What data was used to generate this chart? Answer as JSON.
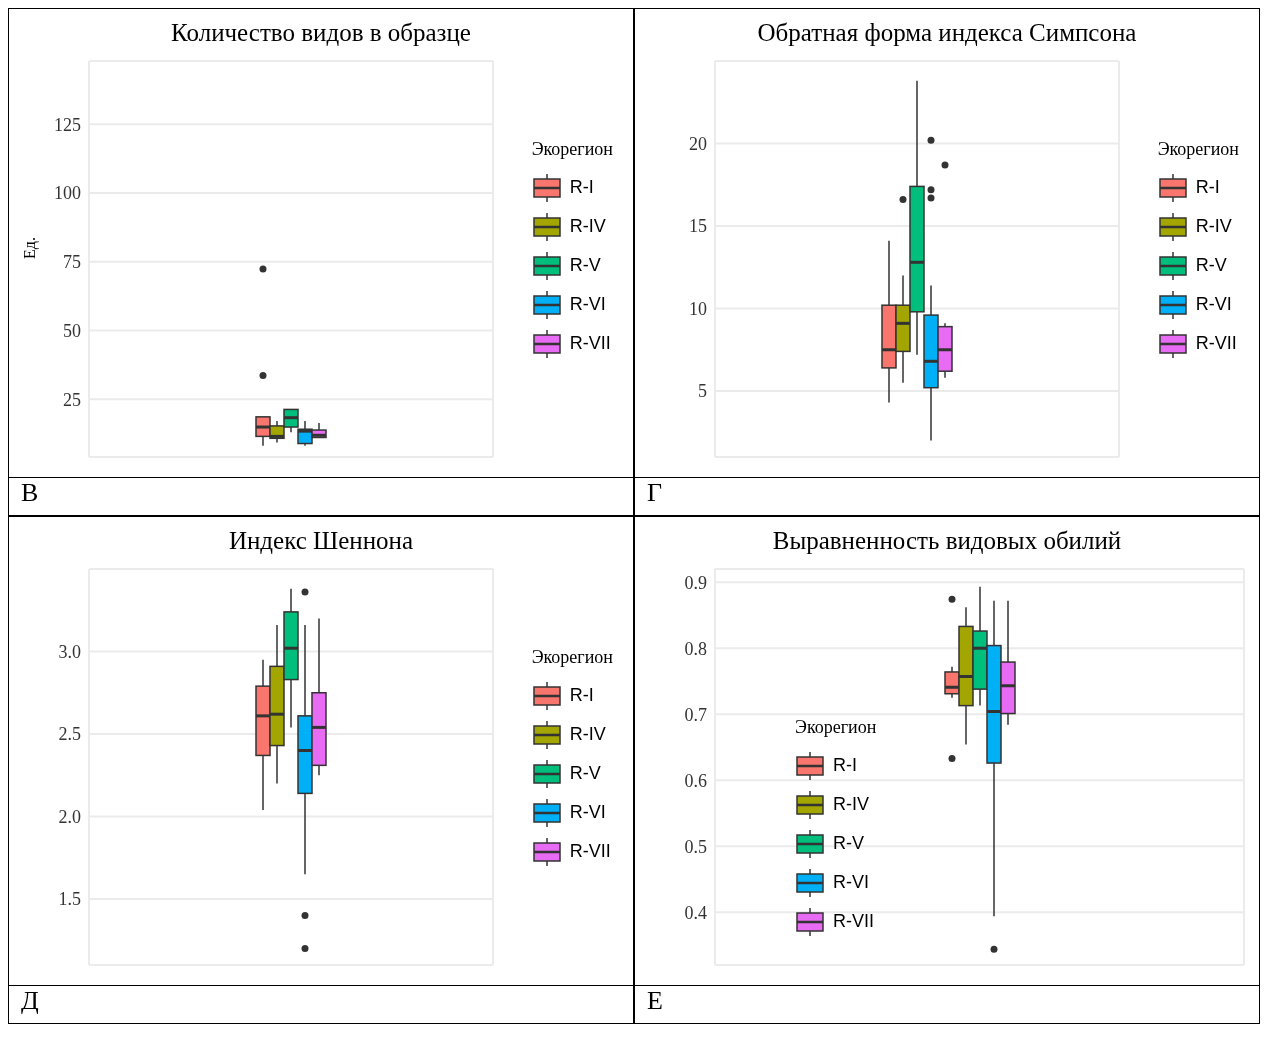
{
  "chart_data": [
    {
      "type": "box",
      "title": "Количество видов в образце",
      "ylabel": "Ед.",
      "categories": [
        null
      ],
      "legend_title": "Экорегион",
      "legend": "right",
      "grid": true,
      "tick_labels": "y",
      "ylim": [
        4,
        148
      ],
      "yticks": [
        25,
        50,
        75,
        100,
        125
      ],
      "annotations": [
        "В"
      ],
      "series": [
        {
          "name": "R-I",
          "color": "#f8766d",
          "boxes": [
            {
              "low": 8.1,
              "q1": 11.5,
              "median": 14.9,
              "q3": 18.6,
              "high": 18.6,
              "outliers": [
                72.4,
                33.6
              ]
            }
          ]
        },
        {
          "name": "R-IV",
          "color": "#a3a500",
          "boxes": [
            {
              "low": 9.3,
              "q1": 10.8,
              "median": 11.5,
              "q3": 15.3,
              "high": 17.1
            }
          ]
        },
        {
          "name": "R-V",
          "color": "#00bf7d",
          "boxes": [
            {
              "low": 13,
              "q1": 14.9,
              "median": 18.3,
              "q3": 21.3,
              "high": 21.3
            }
          ]
        },
        {
          "name": "R-VI",
          "color": "#00b0f6",
          "boxes": [
            {
              "low": 8.1,
              "q1": 8.9,
              "median": 13.4,
              "q3": 14.1,
              "high": 17.1
            }
          ]
        },
        {
          "name": "R-VII",
          "color": "#e76bf3",
          "boxes": [
            {
              "low": 11.1,
              "q1": 11.1,
              "median": 11.9,
              "q3": 13.8,
              "high": 16.4
            }
          ]
        }
      ]
    },
    {
      "type": "box",
      "title": "Обратная форма индекса Симпсона",
      "categories": [
        null
      ],
      "legend_title": "Экорегион",
      "legend": "right",
      "grid": true,
      "tick_labels": "y",
      "ylim": [
        1,
        25
      ],
      "yticks": [
        5,
        10,
        15,
        20
      ],
      "annotations": [
        "Г"
      ],
      "series": [
        {
          "name": "R-I",
          "color": "#f8766d",
          "boxes": [
            {
              "low": 4.3,
              "q1": 6.4,
              "median": 7.5,
              "q3": 10.2,
              "high": 14.1
            }
          ]
        },
        {
          "name": "R-IV",
          "color": "#a3a500",
          "boxes": [
            {
              "low": 5.5,
              "q1": 7.4,
              "median": 9.1,
              "q3": 10.2,
              "high": 12,
              "outliers": [
                16.6
              ]
            }
          ]
        },
        {
          "name": "R-V",
          "color": "#00bf7d",
          "boxes": [
            {
              "low": 7.2,
              "q1": 9.8,
              "median": 12.8,
              "q3": 17.4,
              "high": 23.8
            }
          ]
        },
        {
          "name": "R-VI",
          "color": "#00b0f6",
          "boxes": [
            {
              "low": 2,
              "q1": 5.2,
              "median": 6.8,
              "q3": 9.6,
              "high": 11.4,
              "outliers": [
                20.2,
                17.2,
                16.7
              ]
            }
          ]
        },
        {
          "name": "R-VII",
          "color": "#e76bf3",
          "boxes": [
            {
              "low": 5.8,
              "q1": 6.2,
              "median": 7.5,
              "q3": 8.9,
              "high": 9.1,
              "outliers": [
                18.7
              ]
            }
          ]
        }
      ]
    },
    {
      "type": "box",
      "title": "Индекс Шеннона",
      "categories": [
        null
      ],
      "legend_title": "Экорегион",
      "legend": "right",
      "grid": true,
      "tick_labels": "y",
      "ylim": [
        1.1,
        3.5
      ],
      "yticks": [
        1.5,
        {
          "value": 2,
          "label": "2.0"
        },
        2.5,
        {
          "value": 3,
          "label": "3.0"
        }
      ],
      "annotations": [
        "Д"
      ],
      "series": [
        {
          "name": "R-I",
          "color": "#f8766d",
          "boxes": [
            {
              "low": 2.04,
              "q1": 2.37,
              "median": 2.61,
              "q3": 2.79,
              "high": 2.95
            }
          ]
        },
        {
          "name": "R-IV",
          "color": "#a3a500",
          "boxes": [
            {
              "low": 2.2,
              "q1": 2.43,
              "median": 2.62,
              "q3": 2.91,
              "high": 3.16
            }
          ]
        },
        {
          "name": "R-V",
          "color": "#00bf7d",
          "boxes": [
            {
              "low": 2.54,
              "q1": 2.83,
              "median": 3.02,
              "q3": 3.24,
              "high": 3.38
            }
          ]
        },
        {
          "name": "R-VI",
          "color": "#00b0f6",
          "boxes": [
            {
              "low": 1.65,
              "q1": 2.14,
              "median": 2.4,
              "q3": 2.61,
              "high": 3.16,
              "outliers": [
                3.36,
                1.4,
                1.2
              ]
            }
          ]
        },
        {
          "name": "R-VII",
          "color": "#e76bf3",
          "boxes": [
            {
              "low": 2.25,
              "q1": 2.31,
              "median": 2.54,
              "q3": 2.75,
              "high": 3.2
            }
          ]
        }
      ]
    },
    {
      "type": "box",
      "title": "Выравненность видовых обилий",
      "categories": [
        null
      ],
      "legend_title": "Экорегион",
      "legend": "left",
      "grid": true,
      "tick_labels": "y",
      "ylim": [
        0.32,
        0.92
      ],
      "yticks": [
        0.4,
        0.5,
        0.6,
        0.7,
        0.8,
        0.9
      ],
      "annotations": [
        "Е"
      ],
      "series": [
        {
          "name": "R-I",
          "color": "#f8766d",
          "boxes": [
            {
              "low": 0.725,
              "q1": 0.731,
              "median": 0.741,
              "q3": 0.764,
              "high": 0.772,
              "outliers": [
                0.874,
                0.633
              ]
            }
          ]
        },
        {
          "name": "R-IV",
          "color": "#a3a500",
          "boxes": [
            {
              "low": 0.654,
              "q1": 0.713,
              "median": 0.757,
              "q3": 0.833,
              "high": 0.862
            }
          ]
        },
        {
          "name": "R-V",
          "color": "#00bf7d",
          "boxes": [
            {
              "low": 0.713,
              "q1": 0.738,
              "median": 0.8,
              "q3": 0.826,
              "high": 0.893
            }
          ]
        },
        {
          "name": "R-VI",
          "color": "#00b0f6",
          "boxes": [
            {
              "low": 0.394,
              "q1": 0.626,
              "median": 0.704,
              "q3": 0.804,
              "high": 0.872,
              "outliers": [
                0.344
              ]
            }
          ]
        },
        {
          "name": "R-VII",
          "color": "#e76bf3",
          "boxes": [
            {
              "low": 0.684,
              "q1": 0.701,
              "median": 0.743,
              "q3": 0.779,
              "high": 0.872
            }
          ]
        }
      ]
    }
  ]
}
